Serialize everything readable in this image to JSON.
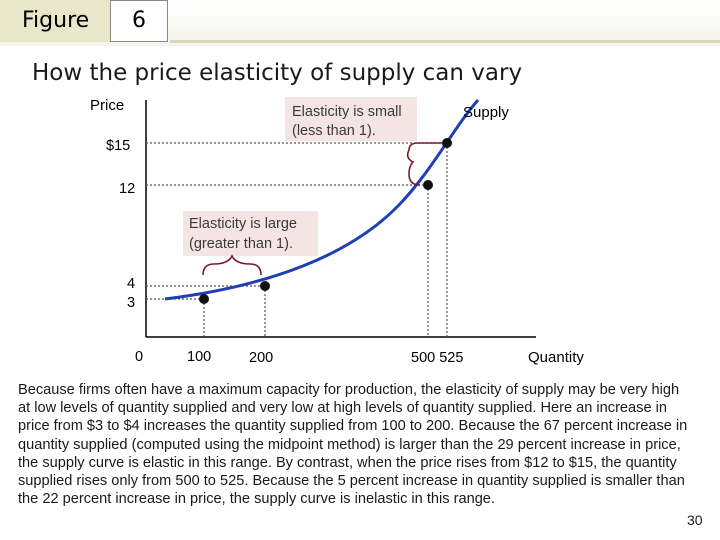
{
  "header": {
    "figure_label": "Figure",
    "figure_number": "6",
    "title": "How the price elasticity of supply can vary"
  },
  "chart_data": {
    "type": "line",
    "title": "How the price elasticity of supply can vary",
    "xlabel": "Quantity",
    "ylabel": "Price",
    "series": [
      {
        "name": "Supply",
        "points": [
          {
            "x": 100,
            "y": 3,
            "label_x": "100",
            "label_y": "3"
          },
          {
            "x": 200,
            "y": 4,
            "label_x": "200",
            "label_y": "4"
          },
          {
            "x": 500,
            "y": 12,
            "label_x": "500",
            "label_y": "12"
          },
          {
            "x": 525,
            "y": 15,
            "label_x": "525",
            "label_y": "$15"
          }
        ],
        "color": "#1f3fb4"
      }
    ],
    "x_ticks": [
      "0",
      "100",
      "200",
      "500 525"
    ],
    "y_ticks": [
      "$15",
      "12",
      "4",
      "3"
    ],
    "annotations": [
      {
        "id": "elastic",
        "text_lines": [
          "Elasticity is large",
          "(greater than 1)."
        ]
      },
      {
        "id": "inelastic",
        "text_lines": [
          "Elasticity is small",
          "(less than 1)."
        ]
      }
    ],
    "curve_label": "Supply",
    "colors": {
      "curve": "#1f3fb4",
      "brace": "#7b1a2a",
      "annotation_bg": "#f4e4e4",
      "point": "#111111"
    }
  },
  "caption": "Because firms often have a maximum capacity for production, the elasticity of supply may be very high at low levels of quantity supplied and very low at high levels of quantity supplied. Here an increase in price from $3 to $4 increases the quantity supplied from 100 to 200. Because the 67 percent increase in quantity supplied (computed using the midpoint method) is larger than the 29 percent increase in price, the supply curve is elastic in this range. By contrast, when the price rises from $12 to $15, the quantity supplied rises only from 500 to 525. Because the 5 percent increase in quantity supplied is smaller than the 22 percent increase in price, the supply curve is inelastic in this range.",
  "page_number": "30"
}
